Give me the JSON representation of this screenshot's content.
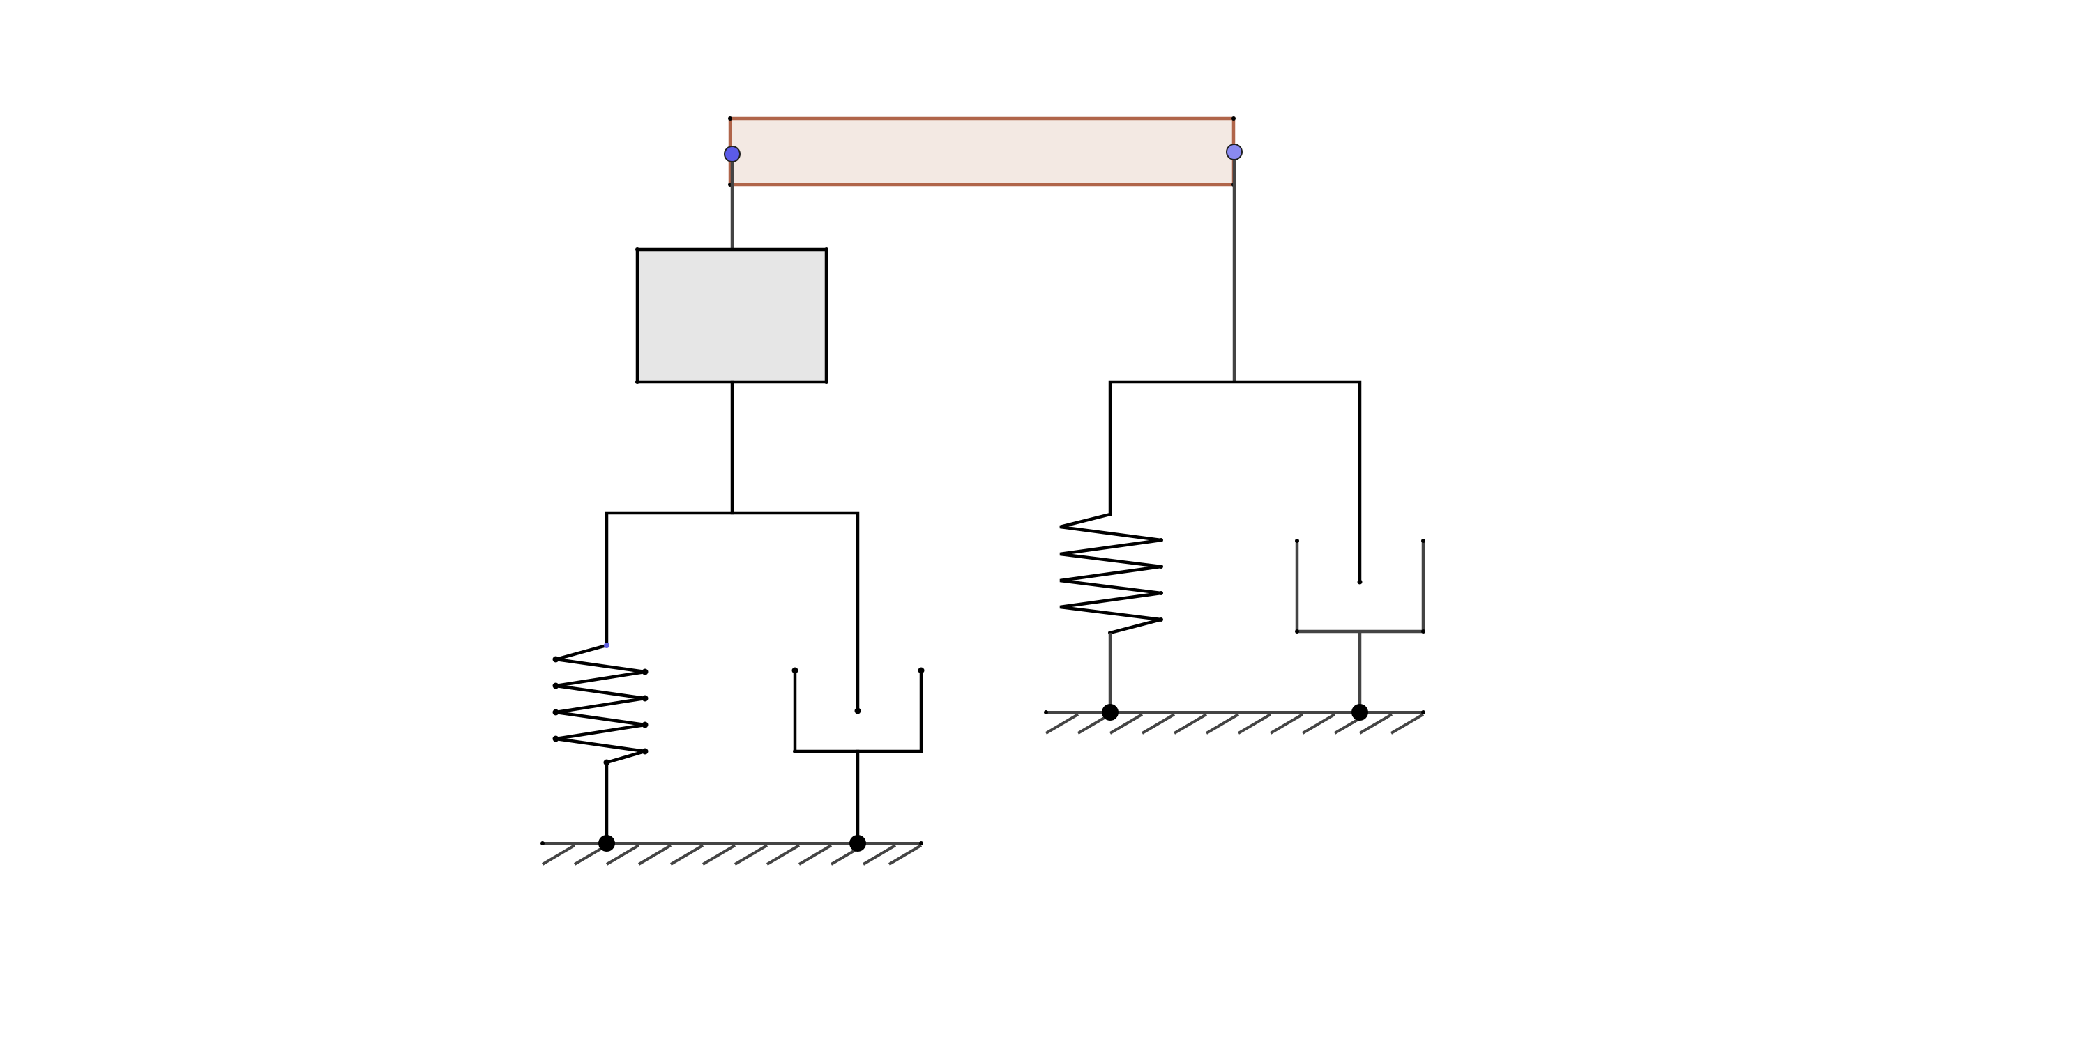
{
  "diagram": {
    "kind": "mechanical-linkage",
    "colors": {
      "lever_fill": "#f3e9e3",
      "lever_stroke": "#b0654a",
      "mass_fill": "#e6e6e6",
      "line": "#000000",
      "grey_line": "#444444",
      "pivot_left": "#5b5be8",
      "pivot_right": "#8a8af0"
    },
    "components": {
      "lever": "rigid-bar",
      "mass": "rigid-block",
      "left_spring": "spring",
      "left_damper": "dashpot",
      "right_spring": "spring",
      "right_damper": "dashpot",
      "left_ground": "fixed-support",
      "right_ground": "fixed-support"
    }
  }
}
